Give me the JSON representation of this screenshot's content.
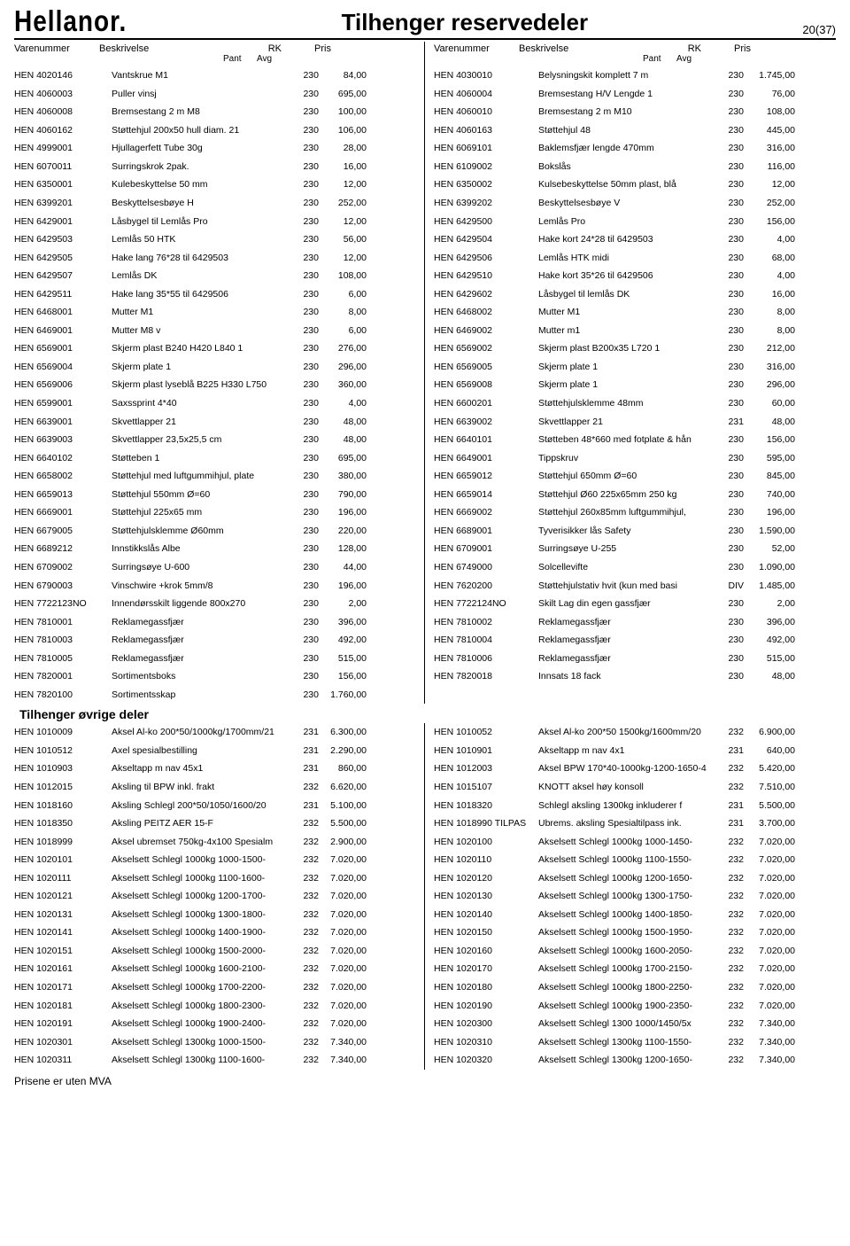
{
  "header": {
    "logo": "Hellanor.",
    "title": "Tilhenger reservedeler",
    "pageNum": "20(37)"
  },
  "columnHeaders": {
    "varenummer": "Varenummer",
    "beskrivelse": "Beskrivelse",
    "pant": "Pant",
    "avg": "Avg",
    "rk": "RK",
    "pris": "Pris"
  },
  "footer": "Prisene er uten MVA",
  "section2Title": "Tilhenger øvrige deler",
  "leftRows": [
    {
      "v": "HEN 4020146",
      "b": "Vantskrue M1",
      "rk": "230",
      "p": "84,00"
    },
    {
      "v": "HEN 4060003",
      "b": "Puller vinsj",
      "rk": "230",
      "p": "695,00"
    },
    {
      "v": "HEN 4060008",
      "b": "Bremsestang 2 m M8",
      "rk": "230",
      "p": "100,00"
    },
    {
      "v": "HEN 4060162",
      "b": "Støttehjul 200x50 hull diam. 21",
      "rk": "230",
      "p": "106,00"
    },
    {
      "v": "HEN 4999001",
      "b": "Hjullagerfett Tube 30g",
      "rk": "230",
      "p": "28,00"
    },
    {
      "v": "HEN 6070011",
      "b": "Surringskrok 2pak.",
      "rk": "230",
      "p": "16,00"
    },
    {
      "v": "HEN 6350001",
      "b": "Kulebeskyttelse 50 mm",
      "rk": "230",
      "p": "12,00"
    },
    {
      "v": "HEN 6399201",
      "b": "Beskyttelsesbøye H",
      "rk": "230",
      "p": "252,00"
    },
    {
      "v": "HEN 6429001",
      "b": "Låsbygel til Lemlås Pro",
      "rk": "230",
      "p": "12,00"
    },
    {
      "v": "HEN 6429503",
      "b": "Lemlås 50 HTK",
      "rk": "230",
      "p": "56,00"
    },
    {
      "v": "HEN 6429505",
      "b": "Hake lang 76*28 til 6429503",
      "rk": "230",
      "p": "12,00"
    },
    {
      "v": "HEN 6429507",
      "b": "Lemlås DK",
      "rk": "230",
      "p": "108,00"
    },
    {
      "v": "HEN 6429511",
      "b": "Hake lang 35*55 til 6429506",
      "rk": "230",
      "p": "6,00"
    },
    {
      "v": "HEN 6468001",
      "b": "Mutter M1",
      "rk": "230",
      "p": "8,00"
    },
    {
      "v": "HEN 6469001",
      "b": "Mutter M8 v",
      "rk": "230",
      "p": "6,00"
    },
    {
      "v": "HEN 6569001",
      "b": "Skjerm plast B240 H420 L840 1",
      "rk": "230",
      "p": "276,00"
    },
    {
      "v": "HEN 6569004",
      "b": "Skjerm plate 1",
      "rk": "230",
      "p": "296,00"
    },
    {
      "v": "HEN 6569006",
      "b": "Skjerm plast lyseblå B225 H330 L750",
      "rk": "230",
      "p": "360,00"
    },
    {
      "v": "HEN 6599001",
      "b": "Saxssprint 4*40",
      "rk": "230",
      "p": "4,00"
    },
    {
      "v": "HEN 6639001",
      "b": "Skvettlapper 21",
      "rk": "230",
      "p": "48,00"
    },
    {
      "v": "HEN 6639003",
      "b": "Skvettlapper 23,5x25,5 cm",
      "rk": "230",
      "p": "48,00"
    },
    {
      "v": "HEN 6640102",
      "b": "Støtteben 1",
      "rk": "230",
      "p": "695,00"
    },
    {
      "v": "HEN 6658002",
      "b": "Støttehjul med luftgummihjul, plate",
      "rk": "230",
      "p": "380,00"
    },
    {
      "v": "HEN 6659013",
      "b": "Støttehjul 550mm Ø=60",
      "rk": "230",
      "p": "790,00"
    },
    {
      "v": "HEN 6669001",
      "b": "Støttehjul 225x65 mm",
      "rk": "230",
      "p": "196,00"
    },
    {
      "v": "HEN 6679005",
      "b": "Støttehjulsklemme Ø60mm",
      "rk": "230",
      "p": "220,00"
    },
    {
      "v": "HEN 6689212",
      "b": "Innstikkslås Albe",
      "rk": "230",
      "p": "128,00"
    },
    {
      "v": "HEN 6709002",
      "b": "Surringsøye U-600",
      "rk": "230",
      "p": "44,00"
    },
    {
      "v": "HEN 6790003",
      "b": "Vinschwire +krok 5mm/8",
      "rk": "230",
      "p": "196,00"
    },
    {
      "v": "HEN 7722123NO",
      "b": "Innendørsskilt liggende 800x270",
      "rk": "230",
      "p": "2,00"
    },
    {
      "v": "HEN 7810001",
      "b": "Reklamegassfjær",
      "rk": "230",
      "p": "396,00"
    },
    {
      "v": "HEN 7810003",
      "b": "Reklamegassfjær",
      "rk": "230",
      "p": "492,00"
    },
    {
      "v": "HEN 7810005",
      "b": "Reklamegassfjær",
      "rk": "230",
      "p": "515,00"
    },
    {
      "v": "HEN 7820001",
      "b": "Sortimentsboks",
      "rk": "230",
      "p": "156,00"
    },
    {
      "v": "HEN 7820100",
      "b": "Sortimentsskap",
      "rk": "230",
      "p": "1.760,00"
    }
  ],
  "rightRows": [
    {
      "v": "HEN 4030010",
      "b": "Belysningskit komplett 7 m",
      "rk": "230",
      "p": "1.745,00"
    },
    {
      "v": "HEN 4060004",
      "b": "Bremsestang H/V Lengde 1",
      "rk": "230",
      "p": "76,00"
    },
    {
      "v": "HEN 4060010",
      "b": "Bremsestang 2 m M10",
      "rk": "230",
      "p": "108,00"
    },
    {
      "v": "HEN 4060163",
      "b": "Støttehjul 48",
      "rk": "230",
      "p": "445,00"
    },
    {
      "v": "HEN 6069101",
      "b": "Baklemsfjær lengde 470mm",
      "rk": "230",
      "p": "316,00"
    },
    {
      "v": "HEN 6109002",
      "b": "Bokslås",
      "rk": "230",
      "p": "116,00"
    },
    {
      "v": "HEN 6350002",
      "b": "Kulsebeskyttelse 50mm plast, blå",
      "rk": "230",
      "p": "12,00"
    },
    {
      "v": "HEN 6399202",
      "b": "Beskyttelsesbøye V",
      "rk": "230",
      "p": "252,00"
    },
    {
      "v": "HEN 6429500",
      "b": "Lemlås Pro",
      "rk": "230",
      "p": "156,00"
    },
    {
      "v": "HEN 6429504",
      "b": "Hake kort 24*28 til 6429503",
      "rk": "230",
      "p": "4,00"
    },
    {
      "v": "HEN 6429506",
      "b": "Lemlås HTK midi",
      "rk": "230",
      "p": "68,00"
    },
    {
      "v": "HEN 6429510",
      "b": "Hake kort 35*26 til 6429506",
      "rk": "230",
      "p": "4,00"
    },
    {
      "v": "HEN 6429602",
      "b": "Låsbygel til lemlås DK",
      "rk": "230",
      "p": "16,00"
    },
    {
      "v": "HEN 6468002",
      "b": "Mutter M1",
      "rk": "230",
      "p": "8,00"
    },
    {
      "v": "HEN 6469002",
      "b": "Mutter m1",
      "rk": "230",
      "p": "8,00"
    },
    {
      "v": "HEN 6569002",
      "b": "Skjerm plast B200x35 L720 1",
      "rk": "230",
      "p": "212,00"
    },
    {
      "v": "HEN 6569005",
      "b": "Skjerm plate 1",
      "rk": "230",
      "p": "316,00"
    },
    {
      "v": "HEN 6569008",
      "b": "Skjerm plate 1",
      "rk": "230",
      "p": "296,00"
    },
    {
      "v": "HEN 6600201",
      "b": "Støttehjulsklemme 48mm",
      "rk": "230",
      "p": "60,00"
    },
    {
      "v": "HEN 6639002",
      "b": "Skvettlapper 21",
      "rk": "231",
      "p": "48,00"
    },
    {
      "v": "HEN 6640101",
      "b": "Støtteben 48*660 med fotplate & hån",
      "rk": "230",
      "p": "156,00"
    },
    {
      "v": "HEN 6649001",
      "b": "Tippskruv",
      "rk": "230",
      "p": "595,00"
    },
    {
      "v": "HEN 6659012",
      "b": "Støttehjul 650mm Ø=60",
      "rk": "230",
      "p": "845,00"
    },
    {
      "v": "HEN 6659014",
      "b": "Støttehjul Ø60 225x65mm 250 kg",
      "rk": "230",
      "p": "740,00"
    },
    {
      "v": "HEN 6669002",
      "b": "Støttehjul 260x85mm luftgummihjul,",
      "rk": "230",
      "p": "196,00"
    },
    {
      "v": "HEN 6689001",
      "b": "Tyverisikker lås Safety",
      "rk": "230",
      "p": "1.590,00"
    },
    {
      "v": "HEN 6709001",
      "b": "Surringsøye U-255",
      "rk": "230",
      "p": "52,00"
    },
    {
      "v": "HEN 6749000",
      "b": "Solcellevifte",
      "rk": "230",
      "p": "1.090,00"
    },
    {
      "v": "HEN 7620200",
      "b": "Støttehjulstativ hvit (kun med basi",
      "rk": "DIV",
      "p": "1.485,00"
    },
    {
      "v": "HEN 7722124NO",
      "b": "Skilt Lag din egen gassfjær",
      "rk": "230",
      "p": "2,00"
    },
    {
      "v": "HEN 7810002",
      "b": "Reklamegassfjær",
      "rk": "230",
      "p": "396,00"
    },
    {
      "v": "HEN 7810004",
      "b": "Reklamegassfjær",
      "rk": "230",
      "p": "492,00"
    },
    {
      "v": "HEN 7810006",
      "b": "Reklamegassfjær",
      "rk": "230",
      "p": "515,00"
    },
    {
      "v": "HEN 7820018",
      "b": "Innsats 18 fack",
      "rk": "230",
      "p": "48,00"
    }
  ],
  "leftRows2": [
    {
      "v": "HEN 1010009",
      "b": "Aksel Al-ko 200*50/1000kg/1700mm/21",
      "rk": "231",
      "p": "6.300,00"
    },
    {
      "v": "HEN 1010512",
      "b": "Axel spesialbestilling",
      "rk": "231",
      "p": "2.290,00"
    },
    {
      "v": "HEN 1010903",
      "b": "Akseltapp m nav 45x1",
      "rk": "231",
      "p": "860,00"
    },
    {
      "v": "HEN 1012015",
      "b": "Aksling til BPW inkl. frakt",
      "rk": "232",
      "p": "6.620,00"
    },
    {
      "v": "HEN 1018160",
      "b": "Aksling Schlegl 200*50/1050/1600/20",
      "rk": "231",
      "p": "5.100,00"
    },
    {
      "v": "HEN 1018350",
      "b": "Aksling PEITZ AER 15-F",
      "rk": "232",
      "p": "5.500,00"
    },
    {
      "v": "HEN 1018999",
      "b": "Aksel ubremset 750kg-4x100 Spesialm",
      "rk": "232",
      "p": "2.900,00"
    },
    {
      "v": "HEN 1020101",
      "b": "Akselsett Schlegl 1000kg 1000-1500-",
      "rk": "232",
      "p": "7.020,00"
    },
    {
      "v": "HEN 1020111",
      "b": "Akselsett Schlegl 1000kg 1100-1600-",
      "rk": "232",
      "p": "7.020,00"
    },
    {
      "v": "HEN 1020121",
      "b": "Akselsett Schlegl 1000kg 1200-1700-",
      "rk": "232",
      "p": "7.020,00"
    },
    {
      "v": "HEN 1020131",
      "b": "Akselsett Schlegl 1000kg 1300-1800-",
      "rk": "232",
      "p": "7.020,00"
    },
    {
      "v": "HEN 1020141",
      "b": "Akselsett Schlegl 1000kg 1400-1900-",
      "rk": "232",
      "p": "7.020,00"
    },
    {
      "v": "HEN 1020151",
      "b": "Akselsett Schlegl 1000kg 1500-2000-",
      "rk": "232",
      "p": "7.020,00"
    },
    {
      "v": "HEN 1020161",
      "b": "Akselsett Schlegl 1000kg 1600-2100-",
      "rk": "232",
      "p": "7.020,00"
    },
    {
      "v": "HEN 1020171",
      "b": "Akselsett Schlegl 1000kg 1700-2200-",
      "rk": "232",
      "p": "7.020,00"
    },
    {
      "v": "HEN 1020181",
      "b": "Akselsett Schlegl 1000kg 1800-2300-",
      "rk": "232",
      "p": "7.020,00"
    },
    {
      "v": "HEN 1020191",
      "b": "Akselsett Schlegl 1000kg 1900-2400-",
      "rk": "232",
      "p": "7.020,00"
    },
    {
      "v": "HEN 1020301",
      "b": "Akselsett Schlegl 1300kg 1000-1500-",
      "rk": "232",
      "p": "7.340,00"
    },
    {
      "v": "HEN 1020311",
      "b": "Akselsett Schlegl 1300kg 1100-1600-",
      "rk": "232",
      "p": "7.340,00"
    }
  ],
  "rightRows2": [
    {
      "v": "HEN 1010052",
      "b": "Aksel Al-ko 200*50 1500kg/1600mm/20",
      "rk": "232",
      "p": "6.900,00"
    },
    {
      "v": "HEN 1010901",
      "b": "Akseltapp m nav 4x1",
      "rk": "231",
      "p": "640,00"
    },
    {
      "v": "HEN 1012003",
      "b": "Aksel BPW 170*40-1000kg-1200-1650-4",
      "rk": "232",
      "p": "5.420,00"
    },
    {
      "v": "HEN 1015107",
      "b": "KNOTT aksel høy konsoll",
      "rk": "232",
      "p": "7.510,00"
    },
    {
      "v": "HEN 1018320",
      "b": "Schlegl aksling 1300kg inkluderer f",
      "rk": "231",
      "p": "5.500,00"
    },
    {
      "v": "HEN 1018990 TILPAS",
      "b": "Ubrems. aksling Spesialtilpass ink.",
      "rk": "231",
      "p": "3.700,00"
    },
    {
      "v": "HEN 1020100",
      "b": "Akselsett Schlegl 1000kg 1000-1450-",
      "rk": "232",
      "p": "7.020,00"
    },
    {
      "v": "HEN 1020110",
      "b": "Akselsett Schlegl 1000kg 1100-1550-",
      "rk": "232",
      "p": "7.020,00"
    },
    {
      "v": "HEN 1020120",
      "b": "Akselsett Schlegl 1000kg 1200-1650-",
      "rk": "232",
      "p": "7.020,00"
    },
    {
      "v": "HEN 1020130",
      "b": "Akselsett Schlegl 1000kg 1300-1750-",
      "rk": "232",
      "p": "7.020,00"
    },
    {
      "v": "HEN 1020140",
      "b": "Akselsett Schlegl 1000kg 1400-1850-",
      "rk": "232",
      "p": "7.020,00"
    },
    {
      "v": "HEN 1020150",
      "b": "Akselsett Schlegl 1000kg 1500-1950-",
      "rk": "232",
      "p": "7.020,00"
    },
    {
      "v": "HEN 1020160",
      "b": "Akselsett Schlegl 1000kg 1600-2050-",
      "rk": "232",
      "p": "7.020,00"
    },
    {
      "v": "HEN 1020170",
      "b": "Akselsett Schlegl 1000kg 1700-2150-",
      "rk": "232",
      "p": "7.020,00"
    },
    {
      "v": "HEN 1020180",
      "b": "Akselsett Schlegl 1000kg 1800-2250-",
      "rk": "232",
      "p": "7.020,00"
    },
    {
      "v": "HEN 1020190",
      "b": "Akselsett Schlegl 1000kg 1900-2350-",
      "rk": "232",
      "p": "7.020,00"
    },
    {
      "v": "HEN 1020300",
      "b": "Akselsett Schlegl 1300 1000/1450/5x",
      "rk": "232",
      "p": "7.340,00"
    },
    {
      "v": "HEN 1020310",
      "b": "Akselsett Schlegl 1300kg 1100-1550-",
      "rk": "232",
      "p": "7.340,00"
    },
    {
      "v": "HEN 1020320",
      "b": "Akselsett Schlegl 1300kg 1200-1650-",
      "rk": "232",
      "p": "7.340,00"
    }
  ]
}
